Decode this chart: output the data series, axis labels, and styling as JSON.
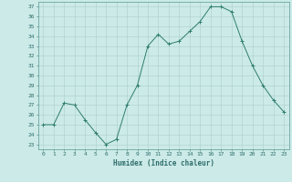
{
  "x": [
    0,
    1,
    2,
    3,
    4,
    5,
    6,
    7,
    8,
    9,
    10,
    11,
    12,
    13,
    14,
    15,
    16,
    17,
    18,
    19,
    20,
    21,
    22,
    23
  ],
  "y": [
    25.0,
    25.0,
    27.2,
    27.0,
    25.5,
    24.2,
    23.0,
    23.5,
    27.0,
    29.0,
    33.0,
    34.2,
    33.2,
    33.5,
    34.5,
    35.5,
    37.0,
    37.0,
    36.5,
    33.5,
    31.0,
    29.0,
    27.5,
    26.3
  ],
  "line_color": "#2e7d6e",
  "marker": "+",
  "marker_size": 3,
  "marker_linewidth": 0.7,
  "line_width": 0.7,
  "bg_color": "#cceae8",
  "grid_color": "#aacfcc",
  "xlabel": "Humidex (Indice chaleur)",
  "xlim": [
    -0.5,
    23.5
  ],
  "ylim": [
    22.5,
    37.5
  ],
  "xticks": [
    0,
    1,
    2,
    3,
    4,
    5,
    6,
    7,
    8,
    9,
    10,
    11,
    12,
    13,
    14,
    15,
    16,
    17,
    18,
    19,
    20,
    21,
    22,
    23
  ],
  "yticks": [
    23,
    24,
    25,
    26,
    27,
    28,
    29,
    30,
    31,
    32,
    33,
    34,
    35,
    36,
    37
  ],
  "tick_fontsize": 4.5,
  "xlabel_fontsize": 5.5,
  "tick_color": "#2e6e6a",
  "label_color": "#2e6e6a",
  "spine_color": "#5a9a94"
}
